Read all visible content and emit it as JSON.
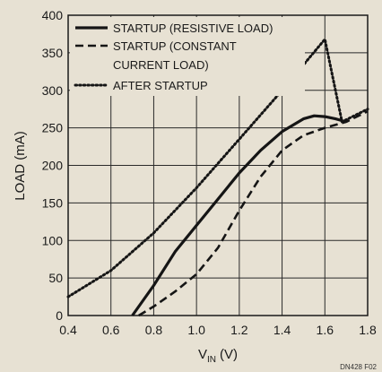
{
  "chart_data": {
    "type": "line",
    "xlabel": "V",
    "xlabel_sub": "IN",
    "xlabel_unit": "(V)",
    "ylabel": "LOAD (mA)",
    "xlim": [
      0.4,
      1.8
    ],
    "ylim": [
      0,
      400
    ],
    "xticks": [
      "0.4",
      "0.6",
      "0.8",
      "1.0",
      "1.2",
      "1.4",
      "1.6",
      "1.8"
    ],
    "yticks": [
      "0",
      "50",
      "100",
      "150",
      "200",
      "250",
      "300",
      "350",
      "400"
    ],
    "grid": true,
    "legend_position": "top-left",
    "figure_code": "DN428 F02",
    "series": [
      {
        "name": "STARTUP (RESISTIVE LOAD)",
        "style": "solid",
        "x": [
          0.7,
          0.8,
          0.9,
          1.0,
          1.1,
          1.2,
          1.3,
          1.4,
          1.5,
          1.55,
          1.6,
          1.65,
          1.7
        ],
        "y": [
          0,
          40,
          85,
          120,
          155,
          190,
          220,
          245,
          262,
          266,
          265,
          262,
          258
        ]
      },
      {
        "name_lines": [
          "STARTUP (CONSTANT",
          "CURRENT LOAD)"
        ],
        "style": "dashed",
        "x": [
          0.73,
          0.8,
          0.9,
          1.0,
          1.1,
          1.2,
          1.3,
          1.4,
          1.5,
          1.6,
          1.7,
          1.8
        ],
        "y": [
          0,
          12,
          32,
          55,
          90,
          140,
          185,
          220,
          240,
          250,
          258,
          272
        ]
      },
      {
        "name": "AFTER STARTUP",
        "style": "dotted",
        "x": [
          0.4,
          0.6,
          0.8,
          1.0,
          1.2,
          1.4,
          1.6,
          1.68,
          1.8
        ],
        "y": [
          25,
          60,
          110,
          170,
          235,
          300,
          368,
          258,
          275
        ]
      }
    ]
  }
}
